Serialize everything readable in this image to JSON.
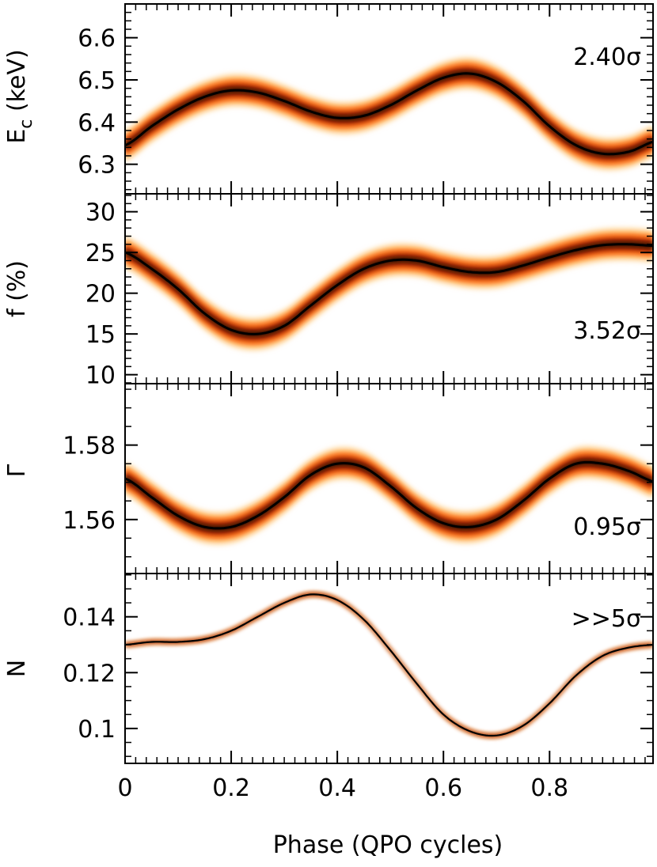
{
  "chart_data": [
    {
      "type": "line",
      "panel": "Ec",
      "ylabel_main": "E",
      "ylabel_sub": "c",
      "ylabel_unit": " (keV)",
      "annotation": "2.40σ",
      "ylim": [
        6.23,
        6.68
      ],
      "yticks": [
        6.3,
        6.4,
        6.5,
        6.6
      ],
      "ytick_labels": [
        "6.3",
        "6.4",
        "6.5",
        "6.6"
      ],
      "band_halfwidth": 0.042,
      "x": [
        0,
        0.05,
        0.1,
        0.15,
        0.2,
        0.25,
        0.3,
        0.35,
        0.4,
        0.45,
        0.5,
        0.55,
        0.6,
        0.65,
        0.7,
        0.75,
        0.8,
        0.85,
        0.9,
        0.95,
        1.0
      ],
      "values": [
        6.345,
        6.39,
        6.43,
        6.46,
        6.475,
        6.47,
        6.45,
        6.425,
        6.41,
        6.415,
        6.44,
        6.475,
        6.505,
        6.515,
        6.495,
        6.45,
        6.39,
        6.345,
        6.325,
        6.33,
        6.355
      ]
    },
    {
      "type": "line",
      "panel": "f",
      "ylabel_main": "f (%)",
      "annotation": "3.52σ",
      "ylim": [
        8.9,
        32.2
      ],
      "yticks": [
        10,
        15,
        20,
        25,
        30
      ],
      "ytick_labels": [
        "10",
        "15",
        "20",
        "25",
        "30"
      ],
      "band_halfwidth": 2.2,
      "x": [
        0,
        0.05,
        0.1,
        0.15,
        0.2,
        0.25,
        0.3,
        0.35,
        0.4,
        0.45,
        0.5,
        0.55,
        0.6,
        0.65,
        0.7,
        0.75,
        0.8,
        0.85,
        0.9,
        0.95,
        1.0
      ],
      "values": [
        25.0,
        23.0,
        20.5,
        17.5,
        15.5,
        15.0,
        16.0,
        18.5,
        21.0,
        23.0,
        24.0,
        24.0,
        23.2,
        22.6,
        22.6,
        23.4,
        24.4,
        25.3,
        25.9,
        26.0,
        25.8
      ]
    },
    {
      "type": "line",
      "panel": "Gamma",
      "ylabel_main": "Γ",
      "annotation": "0.95σ",
      "ylim": [
        1.5455,
        1.5965
      ],
      "yticks": [
        1.56,
        1.58
      ],
      "ytick_labels": [
        "1.56",
        "1.58"
      ],
      "band_halfwidth": 0.0048,
      "x": [
        0,
        0.05,
        0.1,
        0.15,
        0.2,
        0.25,
        0.3,
        0.35,
        0.4,
        0.45,
        0.5,
        0.55,
        0.6,
        0.65,
        0.7,
        0.75,
        0.8,
        0.85,
        0.9,
        0.95,
        1.0
      ],
      "values": [
        1.571,
        1.566,
        1.561,
        1.558,
        1.558,
        1.561,
        1.566,
        1.572,
        1.575,
        1.574,
        1.569,
        1.563,
        1.559,
        1.558,
        1.56,
        1.565,
        1.571,
        1.575,
        1.575,
        1.573,
        1.57
      ]
    },
    {
      "type": "line",
      "panel": "N",
      "ylabel_main": "N",
      "annotation": ">>5σ",
      "ylim": [
        0.0875,
        0.1555
      ],
      "yticks": [
        0.1,
        0.12,
        0.14
      ],
      "ytick_labels": [
        "0.1",
        "0.12",
        "0.14"
      ],
      "band_halfwidth": 0.0009,
      "x": [
        0,
        0.05,
        0.1,
        0.15,
        0.2,
        0.25,
        0.3,
        0.35,
        0.4,
        0.45,
        0.5,
        0.55,
        0.6,
        0.65,
        0.7,
        0.75,
        0.8,
        0.85,
        0.9,
        0.95,
        1.0
      ],
      "values": [
        0.13,
        0.131,
        0.131,
        0.132,
        0.135,
        0.14,
        0.145,
        0.148,
        0.146,
        0.139,
        0.128,
        0.116,
        0.105,
        0.099,
        0.0975,
        0.101,
        0.109,
        0.119,
        0.126,
        0.129,
        0.13
      ]
    }
  ],
  "x_axis": {
    "label": "Phase (QPO cycles)",
    "xlim": [
      0,
      0.995
    ],
    "ticks": [
      0,
      0.2,
      0.4,
      0.6,
      0.8
    ],
    "tick_labels": [
      "0",
      "0.2",
      "0.4",
      "0.6",
      "0.8"
    ]
  },
  "colors": {
    "line": "#000000",
    "band_inner": "#3a0e00",
    "band_mid": "#ff5a00",
    "band_outer": "#ff9e1f",
    "band_edge": "#ffcf8a",
    "frame": "#000000"
  }
}
